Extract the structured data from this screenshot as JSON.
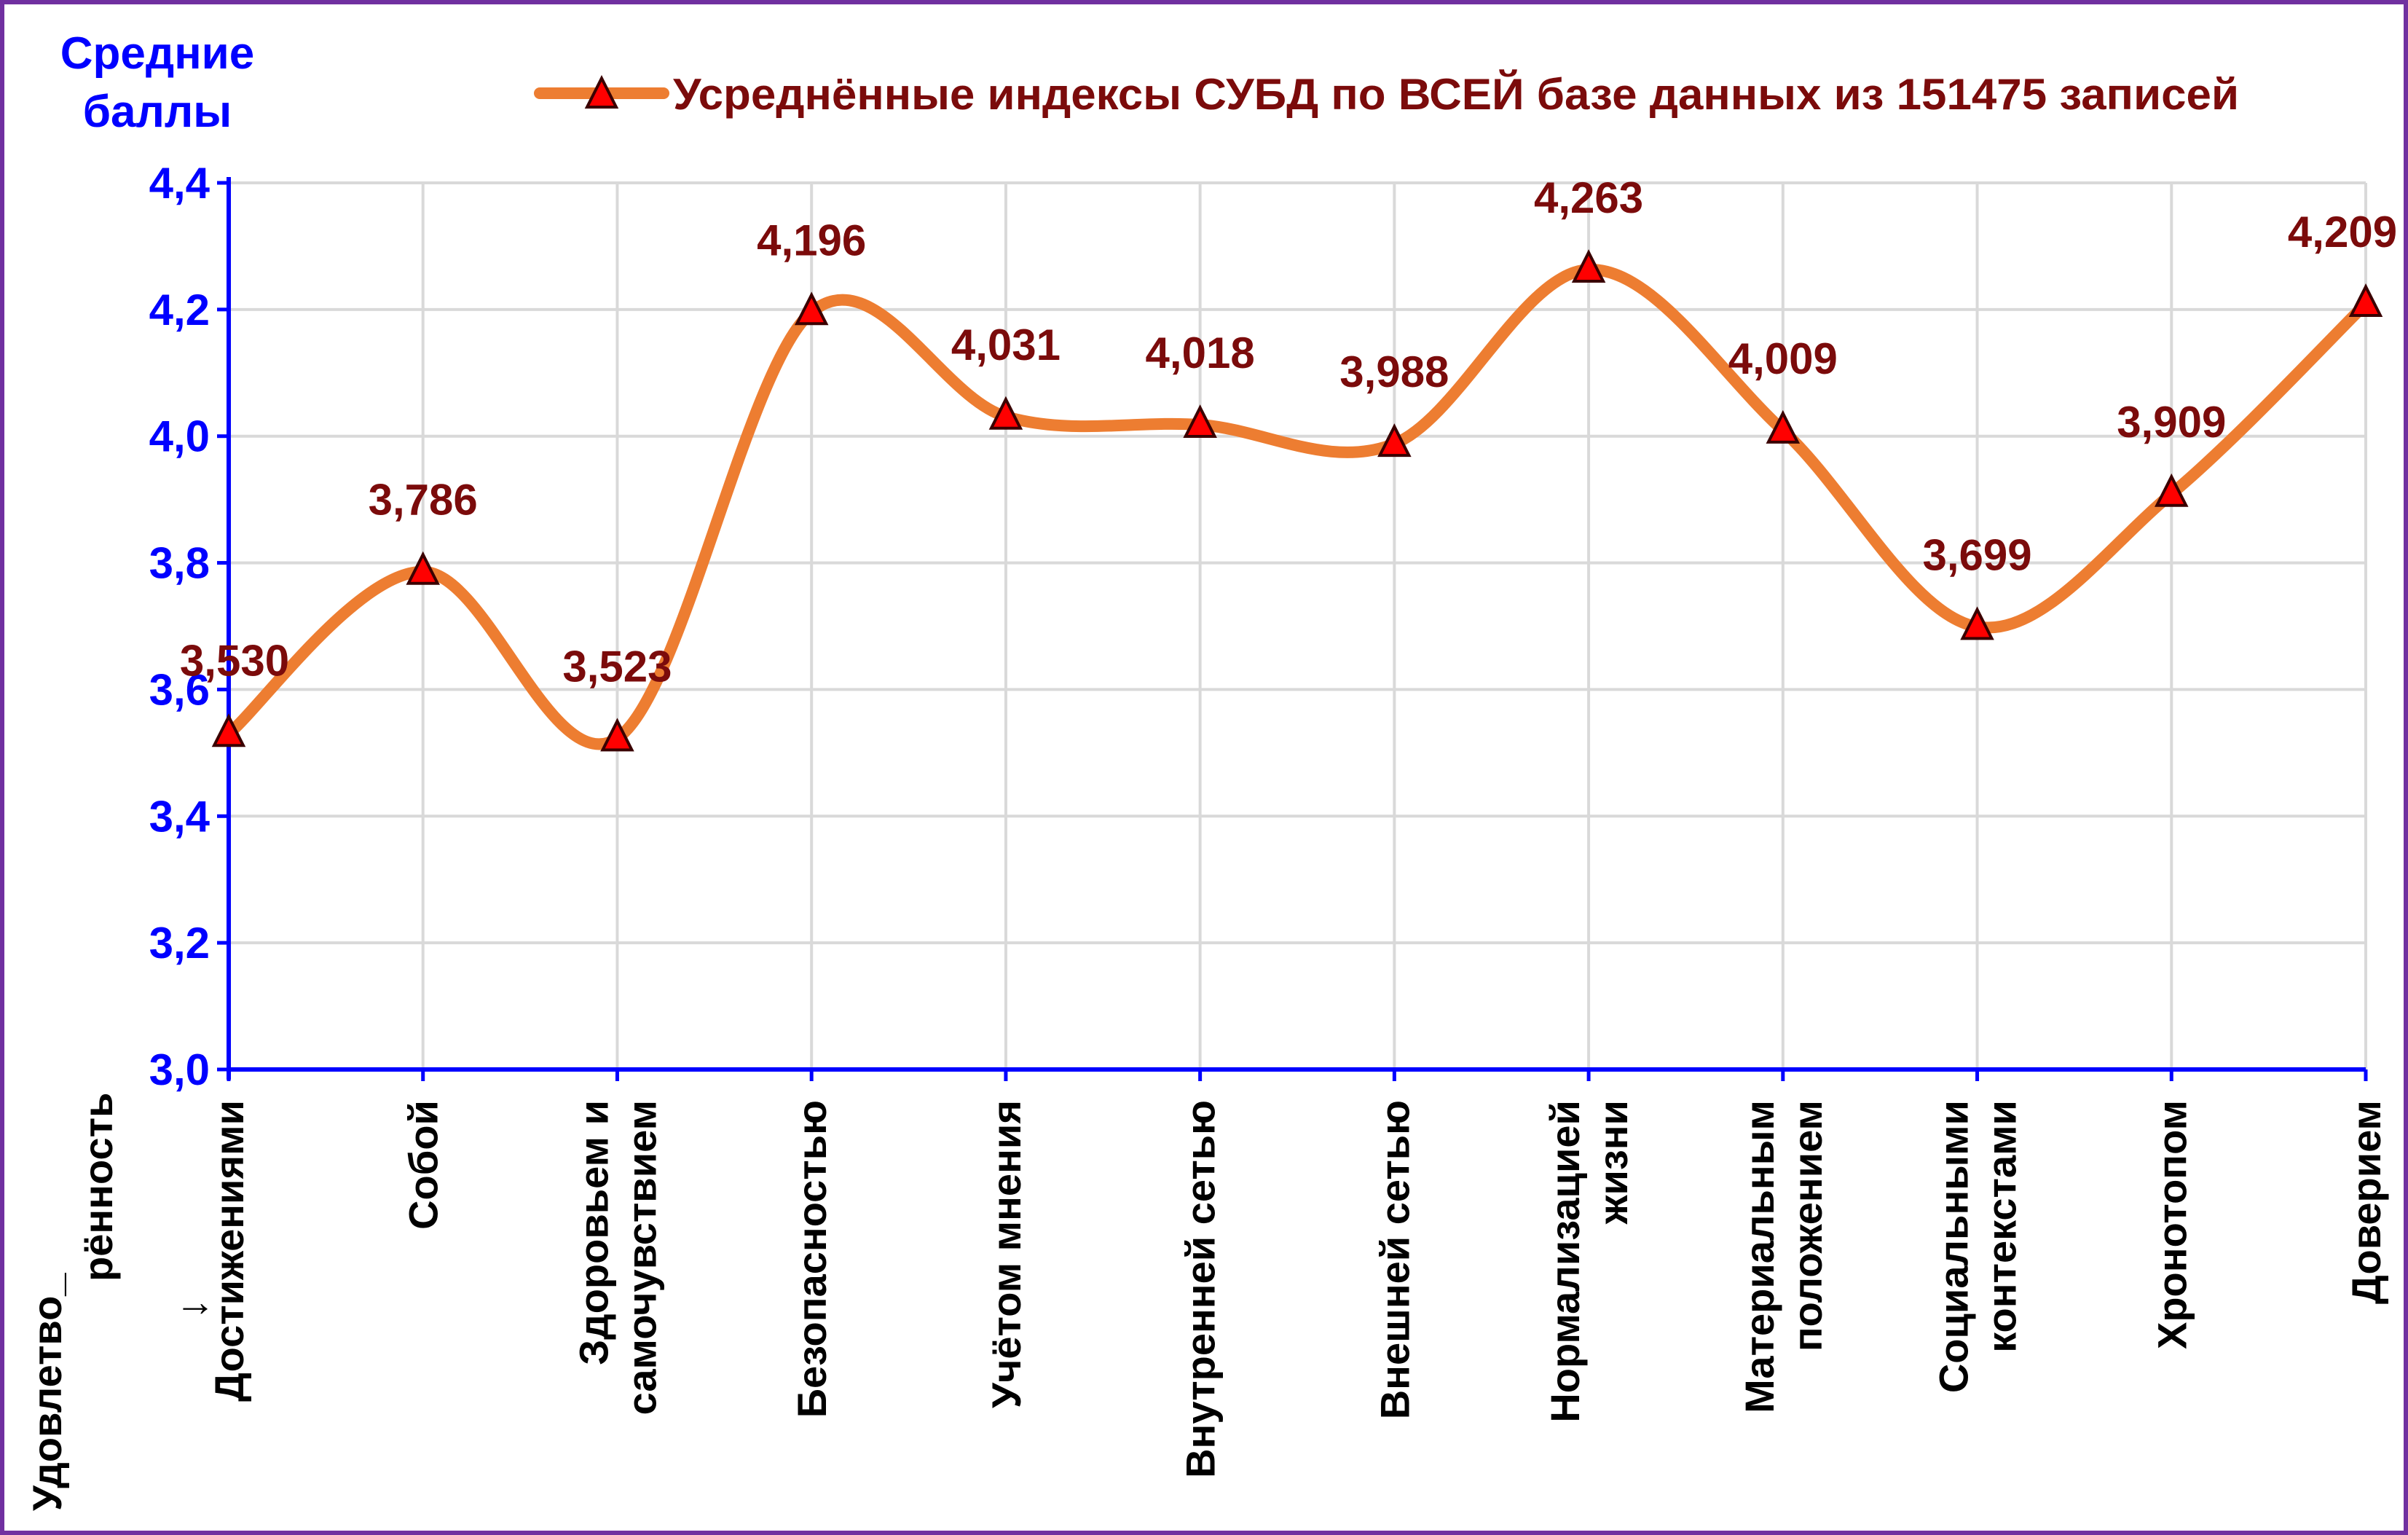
{
  "chart_data": {
    "type": "line",
    "ylabel_lines": [
      "Средние",
      "баллы"
    ],
    "xlabel_lines": [
      "Удовлетво_",
      "рённость",
      "→"
    ],
    "categories": [
      [
        "Достижениями"
      ],
      [
        "Собой"
      ],
      [
        "Здоровьем и",
        "самочувствием"
      ],
      [
        "Безопасностью"
      ],
      [
        "Учётом мнения"
      ],
      [
        "Внутренней сетью"
      ],
      [
        "Внешней сетью"
      ],
      [
        "Нормализацией",
        "жизни"
      ],
      [
        "Материальным",
        "положением"
      ],
      [
        "Социальными",
        "контекстами"
      ],
      [
        "Хронотопом"
      ],
      [
        "Доверием"
      ]
    ],
    "series": [
      {
        "name": "Усреднённые индексы СУБД по ВСЕЙ базе данных из 151475 записей",
        "values": [
          3.53,
          3.786,
          3.523,
          4.196,
          4.031,
          4.018,
          3.988,
          4.263,
          4.009,
          3.699,
          3.909,
          4.209
        ],
        "value_labels": [
          "3,530",
          "3,786",
          "3,523",
          "4,196",
          "4,031",
          "4,018",
          "3,988",
          "4,263",
          "4,009",
          "3,699",
          "3,909",
          "4,209"
        ]
      }
    ],
    "ylim": [
      3.0,
      4.4
    ],
    "yticks": [
      3.0,
      3.2,
      3.4,
      3.6,
      3.8,
      4.0,
      4.2,
      4.4
    ],
    "ytick_labels": [
      "3,0",
      "3,2",
      "3,4",
      "3,6",
      "3,8",
      "4,0",
      "4,2",
      "4,4"
    ],
    "grid": true,
    "smooth": true,
    "marker": "triangle",
    "legend_position": "top",
    "colors": {
      "line": "#ED7D31",
      "marker_fill": "#FF0000",
      "marker_edge": "#3A0000",
      "value_label": "#7B0B0B",
      "axis": "#0000FF",
      "tick_label": "#0000FF",
      "category_label": "#000000",
      "grid": "#D9D9D9",
      "frame": "#7030A0",
      "legend_text": "#7B0B0B"
    }
  }
}
